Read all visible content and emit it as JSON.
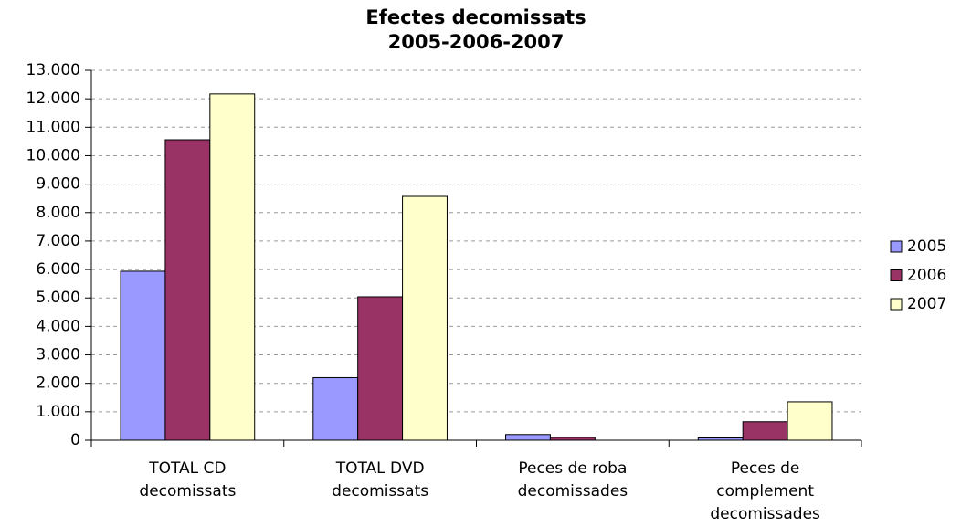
{
  "chart_data": {
    "type": "bar",
    "title": [
      "Efectes decomissats",
      "2005-2006-2007"
    ],
    "categories": [
      [
        "TOTAL CD",
        "decomissats"
      ],
      [
        "TOTAL DVD",
        "decomissats"
      ],
      [
        "Peces de roba",
        "decomissades"
      ],
      [
        "Peces de",
        "complement",
        "decomissades"
      ]
    ],
    "series": [
      {
        "name": "2005",
        "color": "#9999ff",
        "values": [
          5940,
          2200,
          200,
          80
        ]
      },
      {
        "name": "2006",
        "color": "#993366",
        "values": [
          10560,
          5040,
          100,
          650
        ]
      },
      {
        "name": "2007",
        "color": "#ffffcc",
        "values": [
          12170,
          8570,
          0,
          1350
        ]
      }
    ],
    "ylim": [
      0,
      13000
    ],
    "yticks": [
      0,
      {
        "value": 1000,
        "label": "1.000"
      },
      {
        "value": 2000,
        "label": "2.000"
      },
      {
        "value": 3000,
        "label": "3.000"
      },
      {
        "value": 4000,
        "label": "4.000"
      },
      {
        "value": 5000,
        "label": "5.000"
      },
      {
        "value": 6000,
        "label": "6.000"
      },
      {
        "value": 7000,
        "label": "7.000"
      },
      {
        "value": 8000,
        "label": "8.000"
      },
      {
        "value": 9000,
        "label": "9.000"
      },
      {
        "value": 10000,
        "label": "10.000"
      },
      {
        "value": 11000,
        "label": "11.000"
      },
      {
        "value": 12000,
        "label": "12.000"
      },
      {
        "value": 13000,
        "label": "13.000"
      }
    ],
    "grid": true,
    "legend": "right"
  }
}
